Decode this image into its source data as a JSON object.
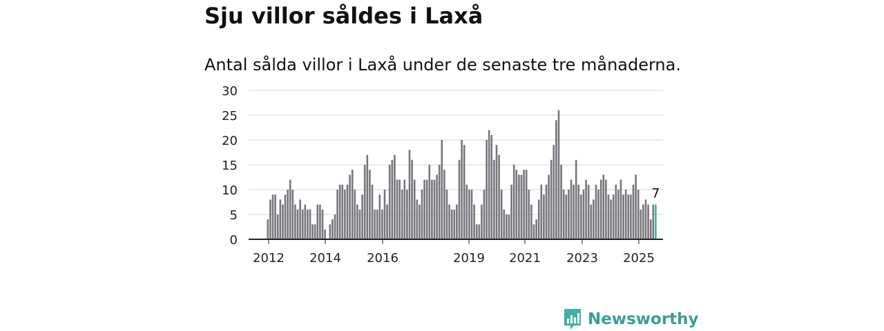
{
  "page": {
    "title": "Sju villor såldes i Laxå",
    "subtitle": "Antal sålda villor i Laxå under de senaste tre månaderna.",
    "brand": "Newsworthy"
  },
  "chart_data": {
    "type": "bar",
    "title": "",
    "xlabel": "",
    "ylabel": "",
    "ylim": [
      0,
      30
    ],
    "yticks": [
      0,
      5,
      10,
      15,
      20,
      25,
      30
    ],
    "xtick_labels": [
      "2012",
      "2014",
      "2016",
      "2019",
      "2021",
      "2023",
      "2025"
    ],
    "grid": true,
    "legend": "none",
    "bar_color": "#76757c",
    "highlight_color": "#3fb0a6",
    "highlight_label": "7",
    "values": [
      4,
      8,
      9,
      9,
      5,
      8,
      7,
      9,
      10,
      12,
      10,
      7,
      6,
      8,
      6,
      7,
      6,
      6,
      3,
      3,
      7,
      7,
      6,
      2,
      0,
      3,
      4,
      5,
      10,
      11,
      11,
      10,
      11,
      13,
      14,
      10,
      7,
      6,
      9,
      15,
      17,
      14,
      11,
      6,
      6,
      9,
      6,
      10,
      7,
      15,
      16,
      17,
      12,
      12,
      10,
      12,
      10,
      18,
      16,
      12,
      8,
      7,
      10,
      12,
      12,
      15,
      12,
      12,
      13,
      15,
      20,
      14,
      10,
      7,
      6,
      6,
      7,
      16,
      20,
      19,
      11,
      10,
      10,
      7,
      3,
      3,
      7,
      10,
      20,
      22,
      21,
      16,
      19,
      17,
      10,
      6,
      5,
      5,
      11,
      15,
      14,
      13,
      13,
      14,
      14,
      10,
      7,
      3,
      4,
      8,
      11,
      9,
      11,
      13,
      16,
      19,
      24,
      26,
      15,
      10,
      9,
      10,
      12,
      11,
      16,
      11,
      9,
      10,
      12,
      11,
      7,
      8,
      11,
      10,
      12,
      13,
      12,
      9,
      8,
      9,
      11,
      10,
      12,
      9,
      10,
      9,
      9,
      11,
      13,
      10,
      6,
      7,
      8,
      7,
      4,
      7,
      7
    ]
  }
}
